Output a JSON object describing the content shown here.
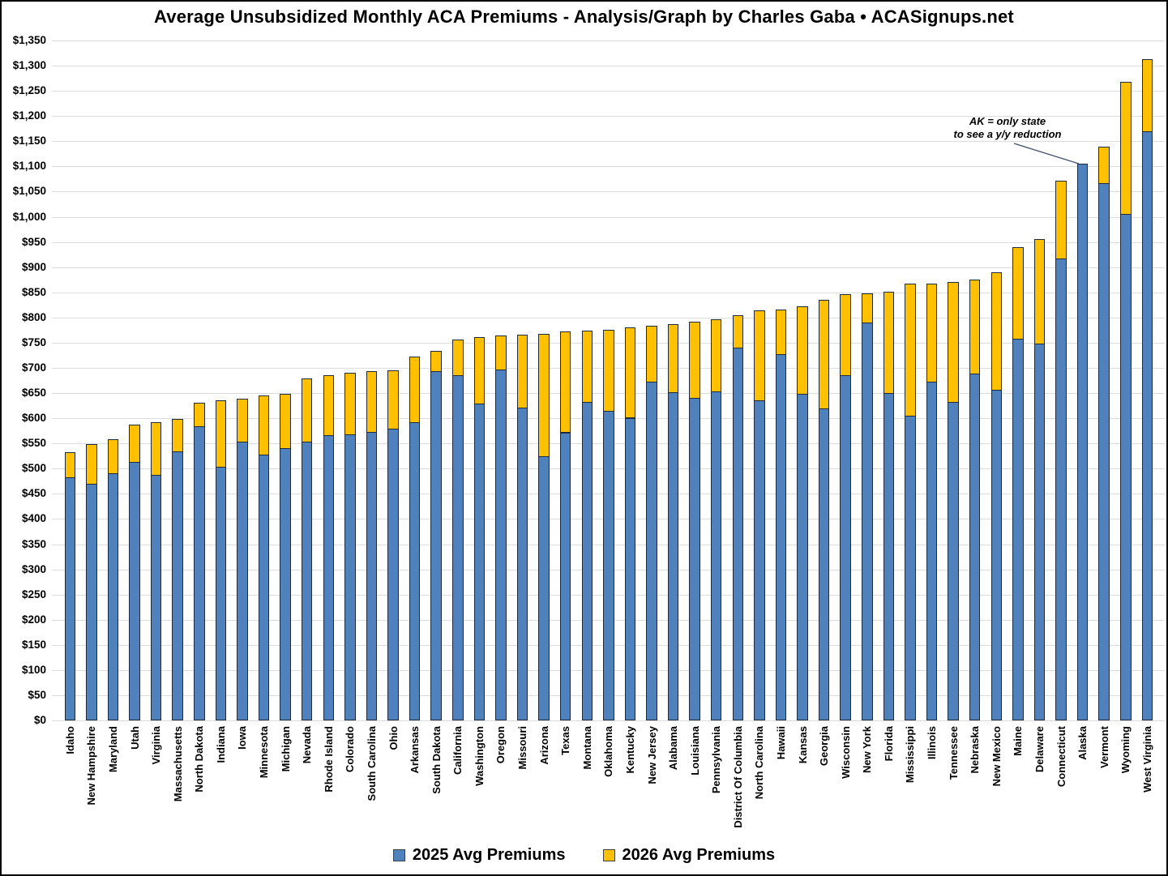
{
  "title": "Average Unsubsidized Monthly ACA Premiums - Analysis/Graph by Charles Gaba • ACASignups.net",
  "annotation": {
    "line1": "AK = only state",
    "line2": "to see a y/y reduction"
  },
  "colors": {
    "series_2025": "#4f81bd",
    "series_2026": "#ffc000",
    "bar_border": "#1f2a3a",
    "gridline": "#dcdcdc",
    "leader_line": "#44546a"
  },
  "chart_data": {
    "type": "bar",
    "title": "Average Unsubsidized Monthly ACA Premiums - Analysis/Graph by Charles Gaba • ACASignups.net",
    "xlabel": "",
    "ylabel": "",
    "ylim": [
      0,
      1350
    ],
    "ytick_step": 50,
    "grid": true,
    "legend_position": "bottom",
    "bar_style": "2026 drawn as yellow extension above 2025 blue column; Alaska shows no yellow (y/y reduction)",
    "yticks": [
      "$0",
      "$50",
      "$100",
      "$150",
      "$200",
      "$250",
      "$300",
      "$350",
      "$400",
      "$450",
      "$500",
      "$550",
      "$600",
      "$650",
      "$700",
      "$750",
      "$800",
      "$850",
      "$900",
      "$950",
      "$1,000",
      "$1,050",
      "$1,100",
      "$1,150",
      "$1,200",
      "$1,250",
      "$1,300",
      "$1,350"
    ],
    "categories": [
      "Idaho",
      "New Hampshire",
      "Maryland",
      "Utah",
      "Virginia",
      "Massachusetts",
      "North Dakota",
      "Indiana",
      "Iowa",
      "Minnesota",
      "Michigan",
      "Nevada",
      "Rhode Island",
      "Colorado",
      "South Carolina",
      "Ohio",
      "Arkansas",
      "South Dakota",
      "California",
      "Washington",
      "Oregon",
      "Missouri",
      "Arizona",
      "Texas",
      "Montana",
      "Oklahoma",
      "Kentucky",
      "New Jersey",
      "Alabama",
      "Louisiana",
      "Pennsylvania",
      "District Of Columbia",
      "North Carolina",
      "Hawaii",
      "Kansas",
      "Georgia",
      "Wisconsin",
      "New York",
      "Florida",
      "Mississippi",
      "Illinois",
      "Tennessee",
      "Nebraska",
      "New Mexico",
      "Maine",
      "Delaware",
      "Connecticut",
      "Alaska",
      "Vermont",
      "Wyoming",
      "West Virginia"
    ],
    "series": [
      {
        "name": "2025 Avg Premiums",
        "color": "#4f81bd",
        "values": [
          482,
          470,
          491,
          514,
          487,
          535,
          584,
          503,
          554,
          528,
          540,
          554,
          566,
          568,
          573,
          580,
          592,
          693,
          686,
          629,
          697,
          621,
          524,
          572,
          632,
          615,
          601,
          673,
          651,
          641,
          654,
          740,
          636,
          728,
          648,
          620,
          686,
          790,
          650,
          605,
          673,
          633,
          688,
          657,
          758,
          748,
          917,
          1106,
          1067,
          1006,
          1170
        ]
      },
      {
        "name": "2026 Avg Premiums",
        "color": "#ffc000",
        "values": [
          532,
          549,
          558,
          587,
          593,
          598,
          631,
          635,
          639,
          645,
          649,
          679,
          686,
          691,
          694,
          695,
          722,
          734,
          756,
          761,
          764,
          766,
          767,
          772,
          774,
          776,
          781,
          784,
          787,
          792,
          796,
          804,
          814,
          816,
          822,
          835,
          846,
          848,
          852,
          867,
          868,
          871,
          875,
          890,
          939,
          956,
          1071,
          1100,
          1139,
          1268,
          1313
        ]
      }
    ]
  }
}
